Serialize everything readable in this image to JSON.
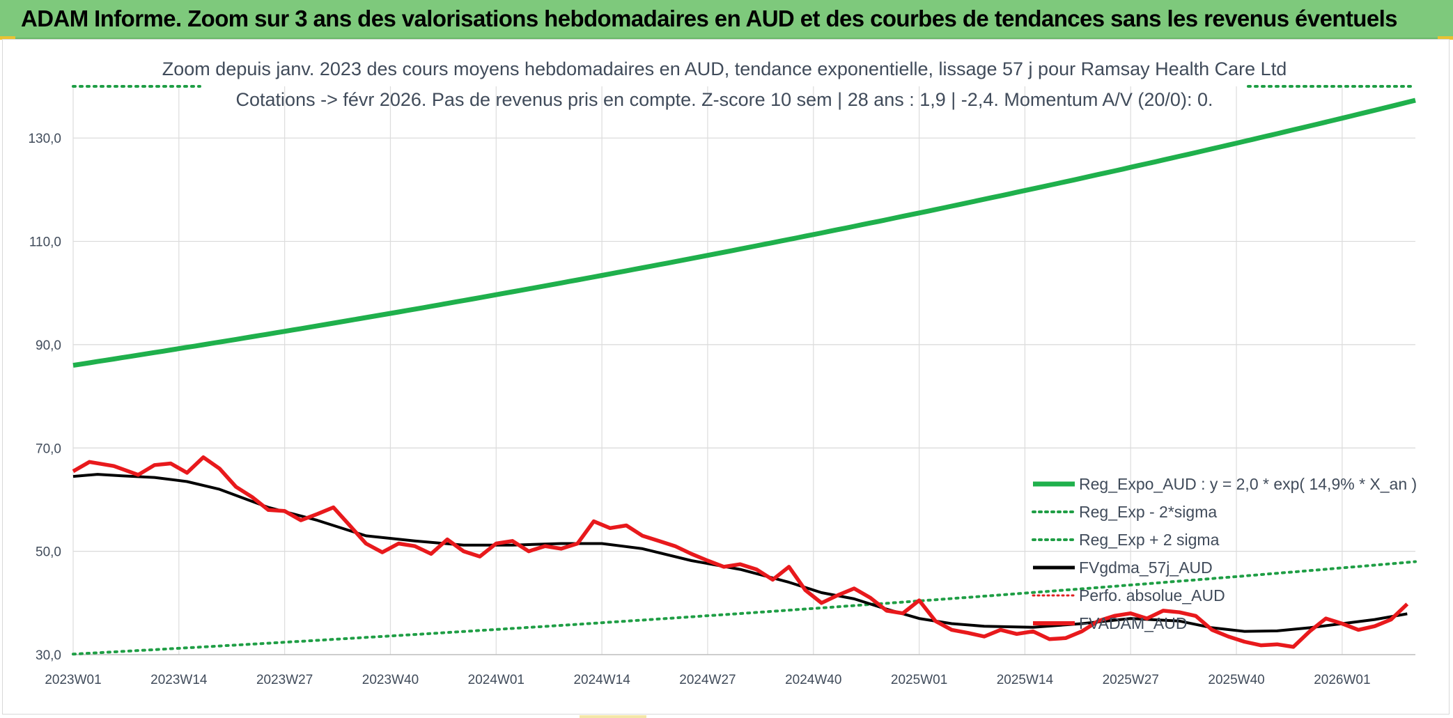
{
  "header": {
    "title": "ADAM Informe. Zoom sur 3 ans des valorisations hebdomadaires en AUD et des courbes de tendances sans les revenus éventuels"
  },
  "chart_data": {
    "type": "line",
    "subtitle_line1": "Zoom depuis janv. 2023 des cours moyens hebdomadaires en AUD, tendance exponentielle, lissage 57 j pour Ramsay Health Care Ltd",
    "subtitle_line2": "Cotations -> févr 2026. Pas de revenus pris en compte. Z-score 10 sem | 28 ans : 1,9 | -2,4. Momentum A/V (20/0): 0.",
    "ylim": [
      30,
      140
    ],
    "y_ticks": [
      "30,0",
      "50,0",
      "70,0",
      "90,0",
      "110,0",
      "130,0"
    ],
    "x_tick_labels": [
      "2023W01",
      "2023W14",
      "2023W27",
      "2023W40",
      "2024W01",
      "2024W14",
      "2024W27",
      "2024W40",
      "2025W01",
      "2025W14",
      "2025W27",
      "2025W40",
      "2026W01"
    ],
    "x_tick_index": [
      0,
      13,
      26,
      39,
      52,
      65,
      78,
      91,
      104,
      117,
      130,
      143,
      156
    ],
    "n_weeks": 165,
    "legend_position": "bottom-right",
    "colors": {
      "reg_expo": "#1fb04c",
      "sigma": "#1f9e45",
      "fvgdma": "#000000",
      "perfo": "#e02020",
      "fvadam": "#e8191c"
    },
    "series": [
      {
        "name": "Reg_Expo_AUD : y = 2,0 * exp( 14,9% *  X_an )",
        "key": "reg_expo",
        "start": 86.0,
        "end": 137.3
      },
      {
        "name": "Reg_Exp - 2*sigma",
        "key": "reg_minus",
        "start": 30.1,
        "end": 48.0
      },
      {
        "name": "Reg_Exp + 2 sigma",
        "key": "reg_plus",
        "start": 140.0,
        "end": 140.0
      },
      {
        "name": "FVgdma_57j_AUD",
        "key": "fvgdma",
        "x": [
          0,
          3,
          6,
          10,
          14,
          18,
          24,
          30,
          36,
          42,
          48,
          54,
          60,
          65,
          70,
          76,
          82,
          88,
          92,
          96,
          100,
          104,
          108,
          112,
          118,
          124,
          130,
          136,
          140,
          144,
          148,
          152,
          156,
          160,
          164
        ],
        "values": [
          64.5,
          64.9,
          64.6,
          64.3,
          63.5,
          62.0,
          58.5,
          56.0,
          53.0,
          52.0,
          51.2,
          51.2,
          51.5,
          51.5,
          50.5,
          48.2,
          46.5,
          44.0,
          42.0,
          40.8,
          38.8,
          37.0,
          36.0,
          35.5,
          35.3,
          36.0,
          37.0,
          36.5,
          35.2,
          34.5,
          34.6,
          35.2,
          36.0,
          36.8,
          37.9
        ]
      },
      {
        "name": "Perfo. absolue_AUD",
        "key": "perfo"
      },
      {
        "name": "FVADAM_AUD",
        "key": "fvadam",
        "x": [
          0,
          2,
          5,
          8,
          10,
          12,
          14,
          16,
          18,
          20,
          22,
          24,
          26,
          28,
          30,
          32,
          34,
          36,
          38,
          40,
          42,
          44,
          46,
          48,
          50,
          52,
          54,
          56,
          58,
          60,
          62,
          64,
          66,
          68,
          70,
          72,
          74,
          76,
          78,
          80,
          82,
          84,
          86,
          88,
          90,
          92,
          94,
          96,
          98,
          100,
          102,
          104,
          106,
          108,
          110,
          112,
          114,
          116,
          118,
          120,
          122,
          124,
          126,
          128,
          130,
          132,
          134,
          136,
          138,
          140,
          142,
          144,
          146,
          148,
          150,
          152,
          154,
          156,
          158,
          160,
          162,
          164
        ],
        "values": [
          65.5,
          67.3,
          66.5,
          64.8,
          66.7,
          67.0,
          65.2,
          68.2,
          66.0,
          62.5,
          60.5,
          58.0,
          57.8,
          56.0,
          57.2,
          58.5,
          55.0,
          51.5,
          49.8,
          51.5,
          51.0,
          49.5,
          52.3,
          50.0,
          49.0,
          51.5,
          52.0,
          50.0,
          51.0,
          50.5,
          51.5,
          55.8,
          54.5,
          55.0,
          53.0,
          52.0,
          51.0,
          49.5,
          48.2,
          47.0,
          47.5,
          46.5,
          44.5,
          47.0,
          42.5,
          40.0,
          41.5,
          42.8,
          41.0,
          38.5,
          38.0,
          40.5,
          36.5,
          34.8,
          34.2,
          33.5,
          34.8,
          34.0,
          34.5,
          33.0,
          33.2,
          34.5,
          36.5,
          37.5,
          38.0,
          37.0,
          38.5,
          38.2,
          37.5,
          34.8,
          33.5,
          32.5,
          31.8,
          32.0,
          31.5,
          34.5,
          37.0,
          36.0,
          34.8,
          35.5,
          36.8,
          39.8
        ]
      }
    ]
  }
}
